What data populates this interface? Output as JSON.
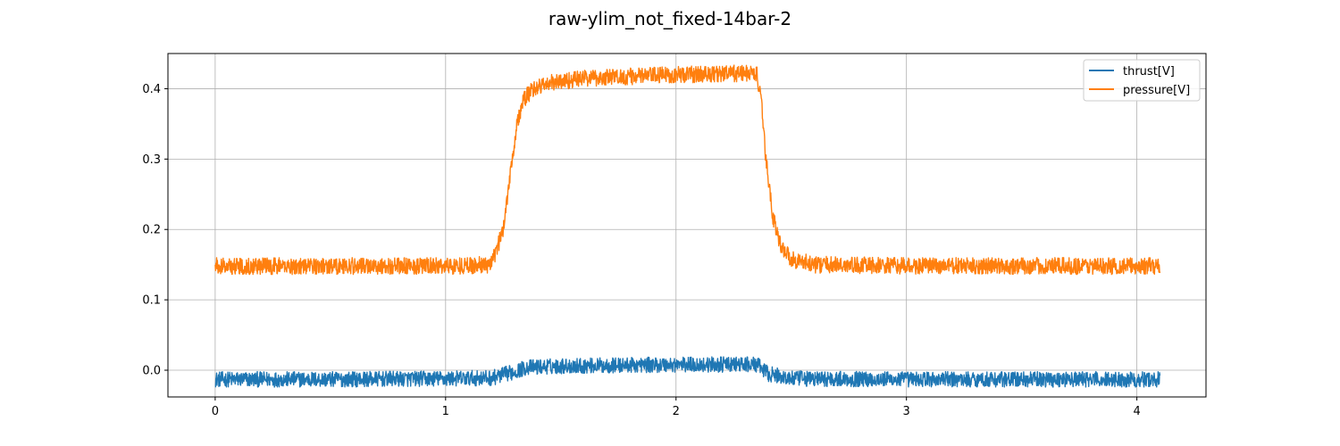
{
  "chart_data": {
    "type": "line",
    "title": "raw-ylim_not_fixed-14bar-2",
    "xlabel": "",
    "ylabel": "",
    "xlim": [
      -0.205,
      4.3
    ],
    "ylim": [
      -0.038,
      0.45
    ],
    "xticks": [
      0,
      1,
      2,
      3,
      4
    ],
    "yticks": [
      0.0,
      0.1,
      0.2,
      0.3,
      0.4
    ],
    "xtick_labels": [
      "0",
      "1",
      "2",
      "3",
      "4"
    ],
    "ytick_labels": [
      "0.0",
      "0.1",
      "0.2",
      "0.3",
      "0.4"
    ],
    "grid": true,
    "legend_position": "top-right",
    "series": [
      {
        "name": "thrust[V]",
        "color": "#1f77b4",
        "x": [
          0,
          0.5,
          1.0,
          1.2,
          1.3,
          1.35,
          1.5,
          2.0,
          2.35,
          2.4,
          2.5,
          3.0,
          3.5,
          4.1
        ],
        "y": [
          -0.013,
          -0.013,
          -0.012,
          -0.011,
          -0.002,
          0.004,
          0.006,
          0.008,
          0.008,
          -0.005,
          -0.012,
          -0.013,
          -0.013,
          -0.013
        ],
        "noise_amplitude": 0.011
      },
      {
        "name": "pressure[V]",
        "color": "#ff7f0e",
        "x": [
          0,
          0.5,
          1.0,
          1.2,
          1.25,
          1.28,
          1.31,
          1.34,
          1.38,
          1.45,
          1.6,
          2.0,
          2.35,
          2.37,
          2.39,
          2.42,
          2.45,
          2.5,
          2.6,
          3.0,
          3.5,
          4.1
        ],
        "y": [
          0.148,
          0.148,
          0.148,
          0.15,
          0.2,
          0.28,
          0.35,
          0.385,
          0.4,
          0.408,
          0.415,
          0.42,
          0.422,
          0.38,
          0.3,
          0.22,
          0.18,
          0.158,
          0.15,
          0.148,
          0.148,
          0.148
        ],
        "noise_amplitude": 0.012
      }
    ]
  }
}
